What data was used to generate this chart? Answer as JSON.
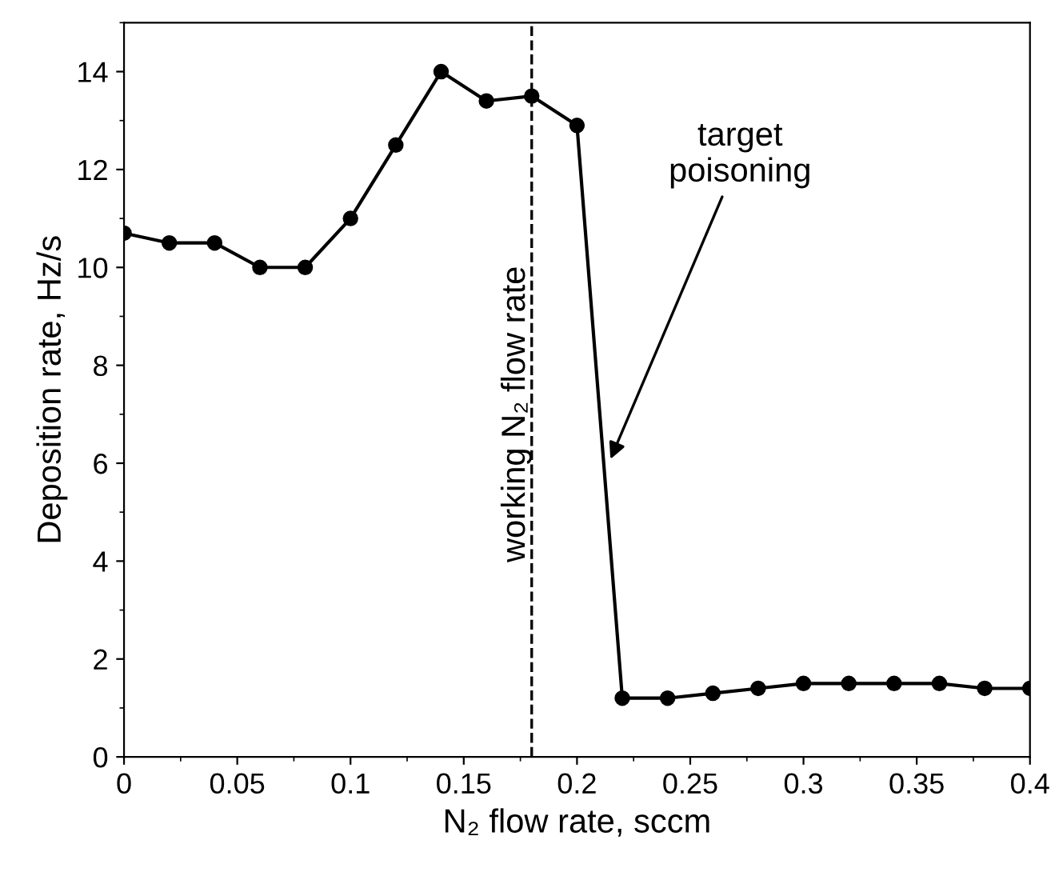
{
  "chart_data": {
    "type": "line",
    "xlabel": "N₂ flow rate, sccm",
    "ylabel": "Deposition rate, Hz/s",
    "x": [
      0,
      0.02,
      0.04,
      0.06,
      0.08,
      0.1,
      0.12,
      0.14,
      0.16,
      0.18,
      0.2,
      0.22,
      0.24,
      0.26,
      0.28,
      0.3,
      0.32,
      0.34,
      0.36,
      0.38,
      0.4
    ],
    "series": [
      {
        "color": "#000000",
        "values": [
          10.7,
          10.5,
          10.5,
          10.0,
          10.0,
          11.0,
          12.5,
          14.0,
          13.4,
          13.5,
          12.9,
          1.2,
          1.2,
          1.3,
          1.4,
          1.5,
          1.5,
          1.5,
          1.5,
          1.4,
          1.4
        ]
      }
    ],
    "xlim": [
      0,
      0.4
    ],
    "xticks": [
      0,
      0.05,
      0.1,
      0.15,
      0.2,
      0.25,
      0.3,
      0.35,
      0.4
    ],
    "ylim": [
      0,
      15
    ],
    "yticks": [
      0,
      2,
      4,
      6,
      8,
      10,
      12,
      14
    ],
    "marker": "circle",
    "line_style": "solid",
    "grid": false,
    "legend": false,
    "ref_lines": [
      {
        "axis": "x",
        "value": 0.18,
        "label": "working N₂ flow rate",
        "color": "#000000",
        "line_style": "dashed"
      }
    ],
    "annotations": [
      {
        "text": "target poisoning",
        "x": 0.214,
        "y": 6
      }
    ]
  }
}
